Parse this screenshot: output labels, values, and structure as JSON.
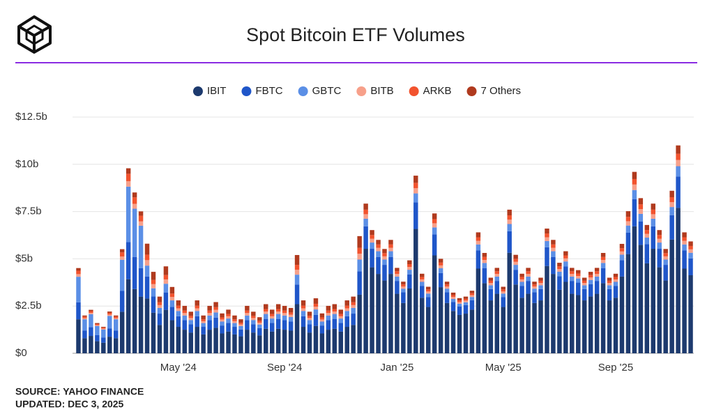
{
  "chart_data": {
    "type": "stacked-bar",
    "title": "Spot Bitcoin ETF Volumes",
    "source": "SOURCE: YAHOO FINANCE",
    "updated": "UPDATED: DEC 3, 2025",
    "legend": "top",
    "grid": true,
    "ylim": [
      0,
      12.5
    ],
    "yticks": [
      {
        "value": 0,
        "label": "$0"
      },
      {
        "value": 2.5,
        "label": "$2.5b"
      },
      {
        "value": 5,
        "label": "$5b"
      },
      {
        "value": 7.5,
        "label": "$7.5b"
      },
      {
        "value": 10,
        "label": "$10b"
      },
      {
        "value": 12.5,
        "label": "$12.5b"
      }
    ],
    "categories": [
      null,
      null,
      null,
      null,
      null,
      null,
      null,
      null,
      null,
      null,
      null,
      null,
      null,
      null,
      null,
      null,
      "May '24",
      null,
      null,
      null,
      null,
      null,
      null,
      null,
      null,
      null,
      null,
      null,
      null,
      null,
      null,
      null,
      null,
      "Sep '24",
      null,
      null,
      null,
      null,
      null,
      null,
      null,
      null,
      null,
      null,
      null,
      null,
      null,
      null,
      null,
      null,
      null,
      "Jan '25",
      null,
      null,
      null,
      null,
      null,
      null,
      null,
      null,
      null,
      null,
      null,
      null,
      null,
      null,
      null,
      null,
      "May '25",
      null,
      null,
      null,
      null,
      null,
      null,
      null,
      null,
      null,
      null,
      null,
      null,
      null,
      null,
      null,
      null,
      null,
      "Sep '25",
      null,
      null,
      null,
      null,
      null,
      null,
      null,
      null,
      null,
      null,
      null,
      null
    ],
    "series": [
      {
        "name": "IBIT",
        "color": "#1d3a6e",
        "values": [
          1.8,
          0.8,
          0.92,
          0.64,
          0.56,
          0.88,
          0.8,
          2.2,
          3.92,
          3.4,
          3,
          2.9,
          2.15,
          1.5,
          2.3,
          1.75,
          1.4,
          1.25,
          1.1,
          1.4,
          1,
          1.25,
          1.35,
          1.05,
          1.15,
          1,
          0.9,
          1.25,
          1.1,
          0.95,
          1.3,
          1.15,
          1.3,
          1.25,
          1.2,
          2.6,
          1.4,
          1.1,
          1.45,
          1.05,
          1.25,
          1.3,
          1.15,
          1.4,
          1.5,
          3.1,
          5.53,
          4.55,
          4.2,
          3.85,
          4.2,
          3.15,
          2.66,
          3.43,
          6.58,
          2.94,
          2.45,
          5.18,
          3.5,
          2.66,
          2.24,
          2.03,
          2.1,
          2.31,
          4.48,
          3.71,
          2.8,
          3.15,
          2.45,
          5.32,
          3.64,
          2.94,
          3.15,
          2.66,
          2.8,
          4.62,
          4.2,
          3.36,
          3.78,
          3.15,
          3.08,
          2.8,
          3.01,
          3.15,
          3.71,
          2.8,
          2.94,
          4.06,
          5.25,
          6.72,
          5.74,
          4.76,
          5.53,
          4.55,
          3.85,
          6.02,
          7.7,
          4.48,
          4.13
        ]
      },
      {
        "name": "FBTC",
        "color": "#1f56c9",
        "values": [
          0.9,
          0.4,
          0.46,
          0.32,
          0.28,
          0.44,
          0.4,
          1.1,
          1.96,
          1.7,
          1.5,
          1.16,
          0.86,
          0.6,
          0.92,
          0.7,
          0.56,
          0.5,
          0.44,
          0.56,
          0.4,
          0.5,
          0.54,
          0.42,
          0.46,
          0.4,
          0.36,
          0.5,
          0.44,
          0.38,
          0.52,
          0.46,
          0.52,
          0.5,
          0.48,
          1.04,
          0.56,
          0.44,
          0.58,
          0.42,
          0.5,
          0.52,
          0.46,
          0.56,
          0.6,
          1.24,
          1.19,
          0.98,
          0.9,
          0.83,
          0.9,
          0.68,
          0.57,
          0.74,
          1.41,
          0.63,
          0.53,
          1.11,
          0.75,
          0.57,
          0.48,
          0.44,
          0.45,
          0.5,
          0.96,
          0.8,
          0.6,
          0.68,
          0.53,
          1.14,
          0.78,
          0.63,
          0.68,
          0.57,
          0.6,
          0.99,
          0.9,
          0.72,
          0.81,
          0.68,
          0.66,
          0.6,
          0.65,
          0.68,
          0.8,
          0.6,
          0.63,
          0.87,
          1.13,
          1.44,
          1.23,
          1.02,
          1.19,
          0.98,
          0.83,
          1.29,
          1.65,
          0.96,
          0.89
        ]
      },
      {
        "name": "GBTC",
        "color": "#5b8fe6",
        "values": [
          1.35,
          0.6,
          0.69,
          0.48,
          0.42,
          0.66,
          0.6,
          1.65,
          2.94,
          2.55,
          2.25,
          0.58,
          0.43,
          0.3,
          0.46,
          0.35,
          0.28,
          0.25,
          0.22,
          0.28,
          0.2,
          0.25,
          0.27,
          0.21,
          0.23,
          0.2,
          0.18,
          0.25,
          0.22,
          0.19,
          0.26,
          0.23,
          0.26,
          0.25,
          0.24,
          0.52,
          0.28,
          0.22,
          0.29,
          0.21,
          0.25,
          0.26,
          0.23,
          0.28,
          0.3,
          0.62,
          0.4,
          0.33,
          0.3,
          0.28,
          0.3,
          0.23,
          0.19,
          0.25,
          0.47,
          0.21,
          0.18,
          0.37,
          0.25,
          0.19,
          0.16,
          0.15,
          0.15,
          0.17,
          0.32,
          0.27,
          0.2,
          0.23,
          0.18,
          0.38,
          0.26,
          0.21,
          0.23,
          0.19,
          0.2,
          0.33,
          0.3,
          0.24,
          0.27,
          0.23,
          0.22,
          0.2,
          0.22,
          0.23,
          0.27,
          0.2,
          0.21,
          0.29,
          0.38,
          0.48,
          0.41,
          0.34,
          0.4,
          0.33,
          0.28,
          0.43,
          0.55,
          0.32,
          0.3
        ]
      },
      {
        "name": "BITB",
        "color": "#f7a08a",
        "values": [
          0.14,
          0.06,
          0.07,
          0.05,
          0.04,
          0.07,
          0.06,
          0.17,
          0.29,
          0.26,
          0.23,
          0.29,
          0.22,
          0.15,
          0.23,
          0.18,
          0.14,
          0.13,
          0.11,
          0.14,
          0.1,
          0.13,
          0.14,
          0.11,
          0.12,
          0.1,
          0.09,
          0.13,
          0.11,
          0.1,
          0.13,
          0.12,
          0.13,
          0.13,
          0.12,
          0.26,
          0.14,
          0.11,
          0.15,
          0.11,
          0.13,
          0.13,
          0.12,
          0.14,
          0.15,
          0.31,
          0.24,
          0.2,
          0.18,
          0.17,
          0.18,
          0.14,
          0.11,
          0.15,
          0.28,
          0.13,
          0.11,
          0.22,
          0.15,
          0.11,
          0.1,
          0.09,
          0.09,
          0.1,
          0.19,
          0.16,
          0.12,
          0.14,
          0.11,
          0.23,
          0.16,
          0.13,
          0.14,
          0.11,
          0.12,
          0.2,
          0.18,
          0.14,
          0.16,
          0.14,
          0.13,
          0.12,
          0.13,
          0.14,
          0.16,
          0.12,
          0.13,
          0.17,
          0.23,
          0.29,
          0.25,
          0.2,
          0.24,
          0.2,
          0.17,
          0.26,
          0.33,
          0.19,
          0.18
        ]
      },
      {
        "name": "ARKB",
        "color": "#f2532e",
        "values": [
          0.18,
          0.08,
          0.09,
          0.06,
          0.06,
          0.09,
          0.08,
          0.22,
          0.39,
          0.34,
          0.3,
          0.29,
          0.22,
          0.15,
          0.23,
          0.18,
          0.14,
          0.13,
          0.11,
          0.14,
          0.1,
          0.13,
          0.14,
          0.11,
          0.12,
          0.1,
          0.09,
          0.13,
          0.11,
          0.1,
          0.13,
          0.12,
          0.13,
          0.13,
          0.12,
          0.26,
          0.14,
          0.11,
          0.15,
          0.11,
          0.13,
          0.13,
          0.12,
          0.14,
          0.15,
          0.31,
          0.24,
          0.2,
          0.18,
          0.17,
          0.18,
          0.14,
          0.11,
          0.15,
          0.28,
          0.13,
          0.11,
          0.22,
          0.15,
          0.11,
          0.1,
          0.09,
          0.09,
          0.1,
          0.19,
          0.16,
          0.12,
          0.14,
          0.11,
          0.23,
          0.16,
          0.13,
          0.14,
          0.11,
          0.12,
          0.2,
          0.18,
          0.14,
          0.16,
          0.14,
          0.13,
          0.12,
          0.13,
          0.14,
          0.16,
          0.12,
          0.13,
          0.17,
          0.23,
          0.29,
          0.25,
          0.2,
          0.24,
          0.2,
          0.17,
          0.26,
          0.33,
          0.19,
          0.18
        ]
      },
      {
        "name": "7 Others",
        "color": "#b03a1e",
        "values": [
          0.14,
          0.06,
          0.07,
          0.05,
          0.04,
          0.07,
          0.06,
          0.17,
          0.29,
          0.26,
          0.23,
          0.58,
          0.43,
          0.3,
          0.46,
          0.35,
          0.28,
          0.25,
          0.22,
          0.28,
          0.2,
          0.25,
          0.27,
          0.21,
          0.23,
          0.2,
          0.18,
          0.25,
          0.22,
          0.19,
          0.26,
          0.23,
          0.26,
          0.25,
          0.24,
          0.52,
          0.28,
          0.22,
          0.29,
          0.21,
          0.25,
          0.26,
          0.23,
          0.28,
          0.3,
          0.62,
          0.32,
          0.26,
          0.24,
          0.22,
          0.24,
          0.18,
          0.15,
          0.2,
          0.38,
          0.17,
          0.14,
          0.3,
          0.2,
          0.15,
          0.13,
          0.12,
          0.12,
          0.13,
          0.26,
          0.21,
          0.16,
          0.18,
          0.14,
          0.3,
          0.21,
          0.17,
          0.18,
          0.15,
          0.16,
          0.26,
          0.24,
          0.19,
          0.22,
          0.18,
          0.18,
          0.16,
          0.17,
          0.18,
          0.21,
          0.16,
          0.17,
          0.23,
          0.3,
          0.38,
          0.33,
          0.27,
          0.32,
          0.26,
          0.22,
          0.34,
          0.44,
          0.26,
          0.24
        ]
      }
    ]
  }
}
